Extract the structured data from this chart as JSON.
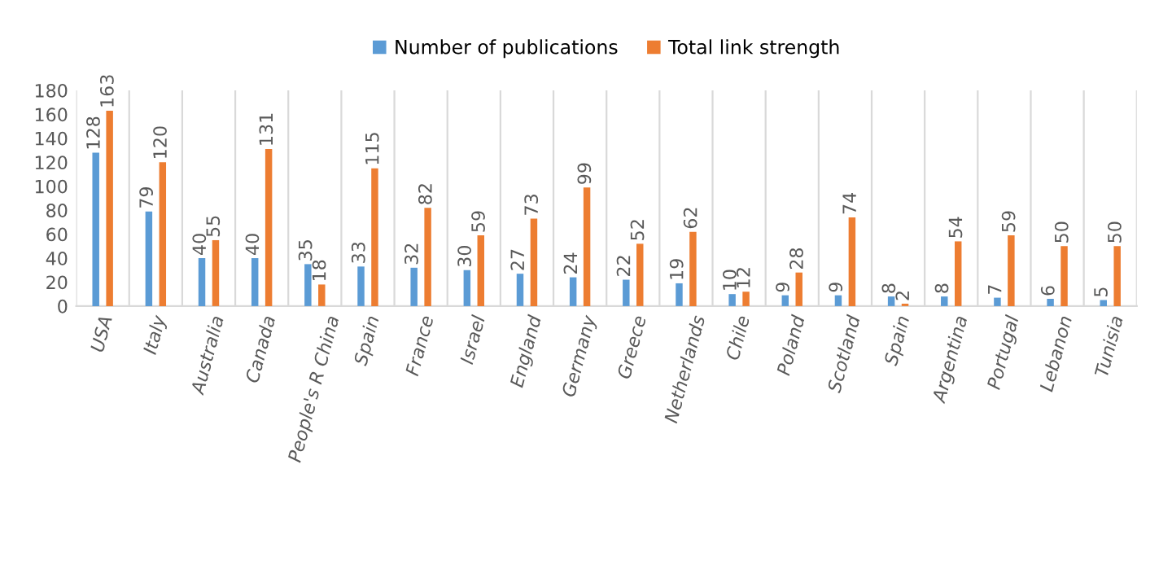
{
  "chart_data": {
    "type": "bar",
    "categories": [
      "USA",
      "Italy",
      "Australia",
      "Canada",
      "People's R China",
      "Spain",
      "France",
      "Israel",
      "England",
      "Germany",
      "Greece",
      "Netherlands",
      "Chile",
      "Poland",
      "Scotland",
      "Spain",
      "Argentina",
      "Portugal",
      "Lebanon",
      "Tunisia"
    ],
    "series": [
      {
        "name": "Number of publications",
        "color": "#5b9bd5",
        "values": [
          128,
          79,
          40,
          40,
          35,
          33,
          32,
          30,
          27,
          24,
          22,
          19,
          10,
          9,
          9,
          8,
          8,
          7,
          6,
          5
        ]
      },
      {
        "name": "Total link strength",
        "color": "#ed7d31",
        "values": [
          163,
          120,
          55,
          131,
          18,
          115,
          82,
          59,
          73,
          99,
          52,
          62,
          12,
          28,
          74,
          2,
          54,
          59,
          50,
          50
        ]
      }
    ],
    "ylim": [
      0,
      180
    ],
    "yticks": [
      0,
      20,
      40,
      60,
      80,
      100,
      120,
      140,
      160,
      180
    ],
    "grid": "x",
    "legend": "top",
    "data_labels": true
  }
}
